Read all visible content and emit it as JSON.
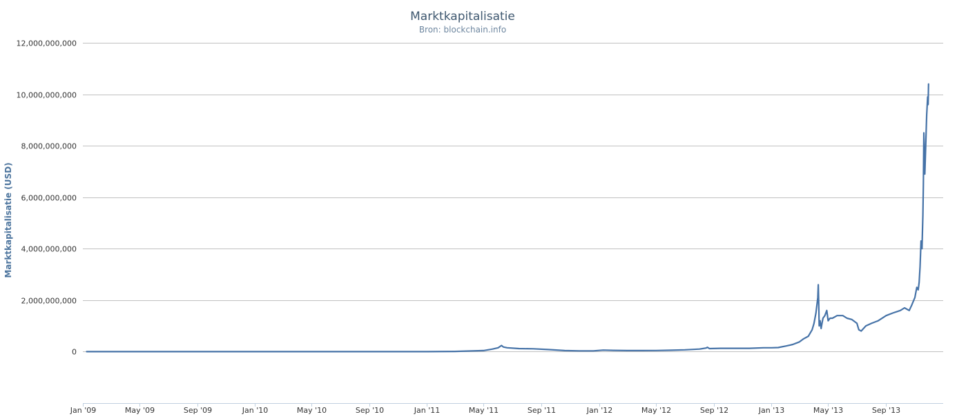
{
  "chart_data": {
    "type": "line",
    "title": "Marktkapitalisatie",
    "subtitle": "Bron: blockchain.info",
    "ylabel": "Marktkapitalisatie (USD)",
    "xlabel": "",
    "ylim": [
      -2000000000,
      12000000000
    ],
    "yticks": [
      0,
      2000000000,
      4000000000,
      6000000000,
      8000000000,
      10000000000,
      12000000000
    ],
    "ytick_labels": [
      "0",
      "2,000,000,000",
      "4,000,000,000",
      "6,000,000,000",
      "8,000,000,000",
      "10,000,000,000",
      "12,000,000,000"
    ],
    "xlim": [
      "2009-01-01",
      "2013-12-31"
    ],
    "xticks": [
      "2009-01-01",
      "2009-05-01",
      "2009-09-01",
      "2010-01-01",
      "2010-05-01",
      "2010-09-01",
      "2011-01-01",
      "2011-05-01",
      "2011-09-01",
      "2012-01-01",
      "2012-05-01",
      "2012-09-01",
      "2013-01-01",
      "2013-05-01",
      "2013-09-01"
    ],
    "xtick_labels": [
      "Jan '09",
      "May '09",
      "Sep '09",
      "Jan '10",
      "May '10",
      "Sep '10",
      "Jan '11",
      "May '11",
      "Sep '11",
      "Jan '12",
      "May '12",
      "Sep '12",
      "Jan '13",
      "May '13",
      "Sep '13"
    ],
    "grid": true,
    "line_color": "#4572a7",
    "series": [
      {
        "x": [
          "2009-01-09",
          "2010-01-01",
          "2010-07-15",
          "2010-11-01",
          "2011-01-01",
          "2011-03-01",
          "2011-05-01",
          "2011-05-20",
          "2011-06-01",
          "2011-06-08",
          "2011-06-12",
          "2011-06-20",
          "2011-07-15",
          "2011-08-15",
          "2011-09-15",
          "2011-10-20",
          "2011-11-20",
          "2011-12-20",
          "2012-01-10",
          "2012-02-01",
          "2012-03-01",
          "2012-04-01",
          "2012-05-01",
          "2012-06-01",
          "2012-07-01",
          "2012-08-01",
          "2012-08-15",
          "2012-08-18",
          "2012-08-22",
          "2012-09-15",
          "2012-10-15",
          "2012-11-15",
          "2012-12-15",
          "2013-01-01",
          "2013-01-15",
          "2013-02-01",
          "2013-02-15",
          "2013-03-01",
          "2013-03-10",
          "2013-03-20",
          "2013-03-28",
          "2013-04-01",
          "2013-04-05",
          "2013-04-09",
          "2013-04-10",
          "2013-04-11",
          "2013-04-12",
          "2013-04-14",
          "2013-04-16",
          "2013-04-18",
          "2013-04-20",
          "2013-04-24",
          "2013-04-28",
          "2013-05-01",
          "2013-05-05",
          "2013-05-10",
          "2013-05-20",
          "2013-06-01",
          "2013-06-10",
          "2013-06-20",
          "2013-07-01",
          "2013-07-05",
          "2013-07-10",
          "2013-07-20",
          "2013-08-01",
          "2013-08-15",
          "2013-09-01",
          "2013-09-15",
          "2013-10-01",
          "2013-10-10",
          "2013-10-20",
          "2013-10-25",
          "2013-11-01",
          "2013-11-05",
          "2013-11-08",
          "2013-11-10",
          "2013-11-12",
          "2013-11-14",
          "2013-11-16",
          "2013-11-18",
          "2013-11-19",
          "2013-11-20",
          "2013-11-22",
          "2013-11-24",
          "2013-11-26",
          "2013-11-28",
          "2013-11-29",
          "2013-11-30"
        ],
        "values": [
          0,
          0,
          0,
          0,
          2000000,
          10000000,
          40000000,
          100000000,
          150000000,
          240000000,
          180000000,
          150000000,
          120000000,
          110000000,
          80000000,
          40000000,
          30000000,
          30000000,
          60000000,
          50000000,
          40000000,
          40000000,
          45000000,
          55000000,
          70000000,
          100000000,
          140000000,
          170000000,
          120000000,
          130000000,
          130000000,
          130000000,
          150000000,
          150000000,
          160000000,
          220000000,
          280000000,
          380000000,
          500000000,
          600000000,
          850000000,
          1100000000,
          1500000000,
          2100000000,
          2600000000,
          1800000000,
          1000000000,
          1200000000,
          900000000,
          1100000000,
          1300000000,
          1400000000,
          1600000000,
          1200000000,
          1300000000,
          1300000000,
          1400000000,
          1400000000,
          1300000000,
          1250000000,
          1100000000,
          850000000,
          800000000,
          1000000000,
          1100000000,
          1200000000,
          1400000000,
          1500000000,
          1600000000,
          1700000000,
          1600000000,
          1800000000,
          2100000000,
          2500000000,
          2400000000,
          2700000000,
          3300000000,
          4300000000,
          4000000000,
          5300000000,
          6500000000,
          8500000000,
          6900000000,
          8000000000,
          9200000000,
          9900000000,
          9600000000,
          10400000000
        ]
      }
    ]
  }
}
